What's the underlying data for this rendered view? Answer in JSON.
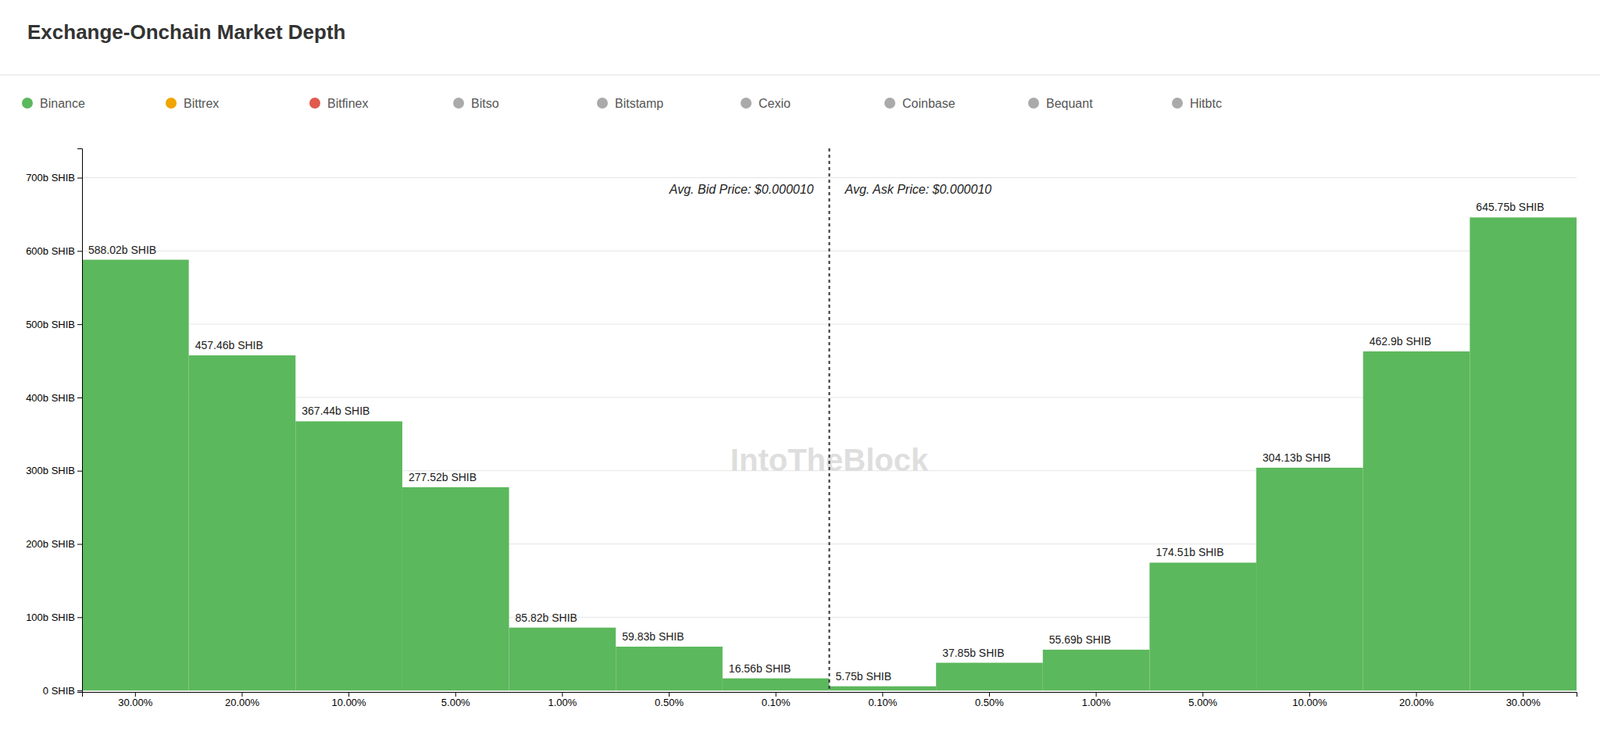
{
  "chart_data": {
    "type": "bar",
    "title": "Exchange-Onchain Market Depth",
    "annotations": [
      "Avg. Bid Price: $0.000010",
      "Avg. Ask Price: $0.000010",
      "IntoTheBlock"
    ],
    "categories": [
      "30.00%",
      "20.00%",
      "10.00%",
      "5.00%",
      "1.00%",
      "0.50%",
      "0.10%",
      "0.10%",
      "0.50%",
      "1.00%",
      "5.00%",
      "10.00%",
      "20.00%",
      "30.00%"
    ],
    "series": [
      {
        "name": "Binance",
        "color": "#5cb85c",
        "values": [
          588.02,
          457.46,
          367.44,
          277.52,
          85.82,
          59.83,
          16.56,
          5.75,
          37.85,
          55.69,
          174.51,
          304.13,
          462.9,
          645.75
        ],
        "value_labels": [
          "588.02b SHIB",
          "457.46b SHIB",
          "367.44b SHIB",
          "277.52b SHIB",
          "85.82b SHIB",
          "59.83b SHIB",
          "16.56b SHIB",
          "5.75b SHIB",
          "37.85b SHIB",
          "55.69b SHIB",
          "174.51b SHIB",
          "304.13b SHIB",
          "462.9b SHIB",
          "645.75b SHIB"
        ]
      },
      {
        "name": "Bittrex",
        "color": "#f0a500",
        "values": [
          null,
          null,
          null,
          null,
          null,
          null,
          null,
          null,
          null,
          null,
          null,
          null,
          null,
          null
        ]
      },
      {
        "name": "Bitfinex",
        "color": "#e05a4e",
        "values": [
          null,
          null,
          null,
          null,
          null,
          null,
          null,
          null,
          null,
          null,
          null,
          null,
          null,
          null
        ]
      },
      {
        "name": "Bitso",
        "color": "#aaaaaa",
        "values": [
          null,
          null,
          null,
          null,
          null,
          null,
          null,
          null,
          null,
          null,
          null,
          null,
          null,
          null
        ]
      },
      {
        "name": "Bitstamp",
        "color": "#aaaaaa",
        "values": [
          null,
          null,
          null,
          null,
          null,
          null,
          null,
          null,
          null,
          null,
          null,
          null,
          null,
          null
        ]
      },
      {
        "name": "Cexio",
        "color": "#aaaaaa",
        "values": [
          null,
          null,
          null,
          null,
          null,
          null,
          null,
          null,
          null,
          null,
          null,
          null,
          null,
          null
        ]
      },
      {
        "name": "Coinbase",
        "color": "#aaaaaa",
        "values": [
          null,
          null,
          null,
          null,
          null,
          null,
          null,
          null,
          null,
          null,
          null,
          null,
          null,
          null
        ]
      },
      {
        "name": "Bequant",
        "color": "#aaaaaa",
        "values": [
          null,
          null,
          null,
          null,
          null,
          null,
          null,
          null,
          null,
          null,
          null,
          null,
          null,
          null
        ]
      },
      {
        "name": "Hitbtc",
        "color": "#aaaaaa",
        "values": [
          null,
          null,
          null,
          null,
          null,
          null,
          null,
          null,
          null,
          null,
          null,
          null,
          null,
          null
        ]
      }
    ],
    "ylim": [
      -2,
      740
    ],
    "yticks": [
      {
        "value": 0,
        "label": "0 SHIB"
      },
      {
        "value": 100,
        "label": "100b SHIB"
      },
      {
        "value": 200,
        "label": "200b SHIB"
      },
      {
        "value": 300,
        "label": "300b SHIB"
      },
      {
        "value": 400,
        "label": "400b SHIB"
      },
      {
        "value": 500,
        "label": "500b SHIB"
      },
      {
        "value": 600,
        "label": "600b SHIB"
      },
      {
        "value": 700,
        "label": "700b SHIB"
      }
    ],
    "grid": true,
    "legend": "top",
    "data_labels": true
  }
}
